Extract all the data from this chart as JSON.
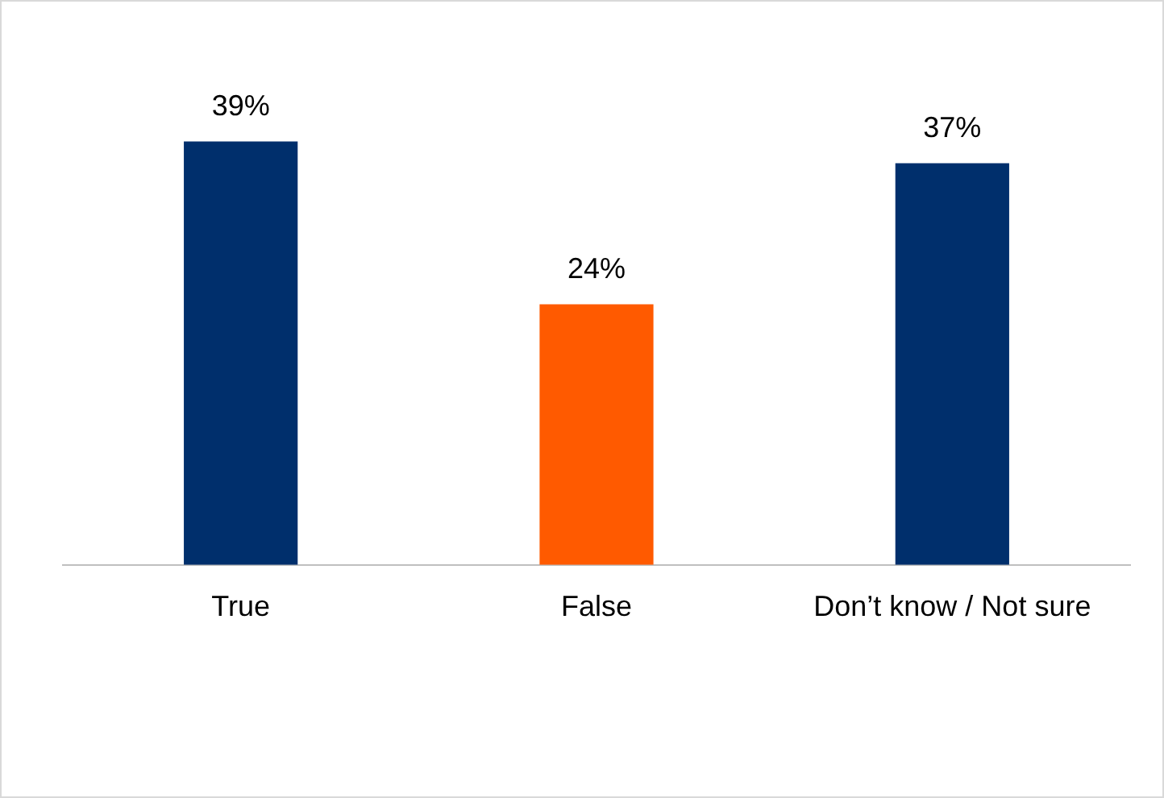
{
  "chart_data": {
    "type": "bar",
    "categories": [
      "True",
      "False",
      "Don’t know / Not sure"
    ],
    "values": [
      39,
      24,
      37
    ],
    "colors": [
      "#002f6c",
      "#ff5a00",
      "#002f6c"
    ],
    "value_labels": [
      "39%",
      "24%",
      "37%"
    ],
    "grid": false,
    "legend": false
  }
}
